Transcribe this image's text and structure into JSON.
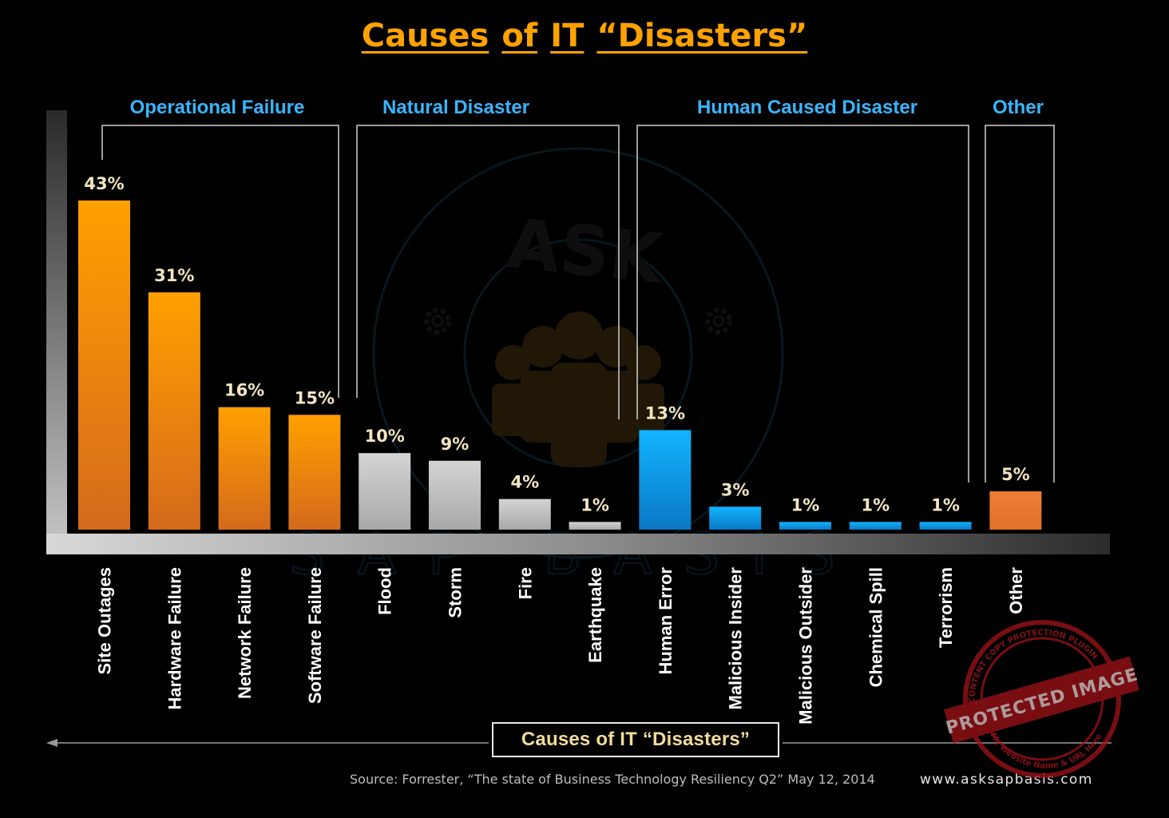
{
  "title_words": [
    "Causes",
    "of",
    "IT",
    "“Disasters”"
  ],
  "bottom_title": "Causes of IT “Disasters”",
  "source": "Source: Forrester, “The state of Business Technology Resiliency Q2” May 12, 2014",
  "website": "www.asksapbasis.com",
  "watermark": {
    "text_top": "ASK",
    "text_ring": "SAP BASIS",
    "icon": "people-group-icon"
  },
  "stamp": {
    "main": "PROTECTED IMAGE",
    "ring_top": "CONTENT COPY PROTECTION PLUGIN",
    "ring_bottom": "My Website Name & URL Here"
  },
  "colors": {
    "operational": "#ffa000",
    "natural": "#c4c4c4",
    "human": "#13a7ef",
    "other": "#ec7b32",
    "group_label": "#38b6ff",
    "value_label": "#f3e6c0",
    "category_label": "#ffffff"
  },
  "chart_data": {
    "type": "bar",
    "title": "Causes of IT “Disasters”",
    "xlabel": "Causes of IT “Disasters”",
    "ylabel": "",
    "ylim": [
      0,
      50
    ],
    "grid": false,
    "value_format": "percent",
    "groups": [
      {
        "name": "Operational Failure",
        "color": "#ffa000",
        "categories": [
          0,
          1,
          2,
          3
        ]
      },
      {
        "name": "Natural Disaster",
        "color": "#c4c4c4",
        "categories": [
          4,
          5,
          6,
          7
        ]
      },
      {
        "name": "Human Caused Disaster",
        "color": "#13a7ef",
        "categories": [
          8,
          9,
          10,
          11,
          12
        ]
      },
      {
        "name": "Other",
        "color": "#ec7b32",
        "categories": [
          13
        ]
      }
    ],
    "categories": [
      "Site Outages",
      "Hardware Failure",
      "Network Failure",
      "Software Failure",
      "Flood",
      "Storm",
      "Fire",
      "Earthquake",
      "Human Error",
      "Malicious Insider",
      "Malicious Outsider",
      "Chemical Spill",
      "Terrorism",
      "Other"
    ],
    "values": [
      43,
      31,
      16,
      15,
      10,
      9,
      4,
      1,
      13,
      3,
      1,
      1,
      1,
      5
    ],
    "labels": [
      "43%",
      "31%",
      "16%",
      "15%",
      "10%",
      "9%",
      "4%",
      "1%",
      "13%",
      "3%",
      "1%",
      "1%",
      "1%",
      "5%"
    ]
  }
}
